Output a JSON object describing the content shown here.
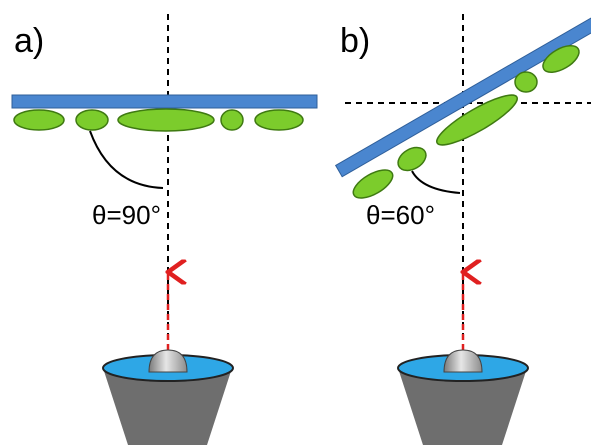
{
  "panels": [
    {
      "label": "a)",
      "angle_label": "θ=90°"
    },
    {
      "label": "b)",
      "angle_label": "θ=60°"
    }
  ],
  "colors": {
    "substrate": "#4a86cf",
    "particle": "#7ccc2c",
    "beam": "#e02020",
    "cone": "#6e6e6e",
    "cone_top": "#2ea7e6",
    "droplet": "#b8b8b8"
  }
}
